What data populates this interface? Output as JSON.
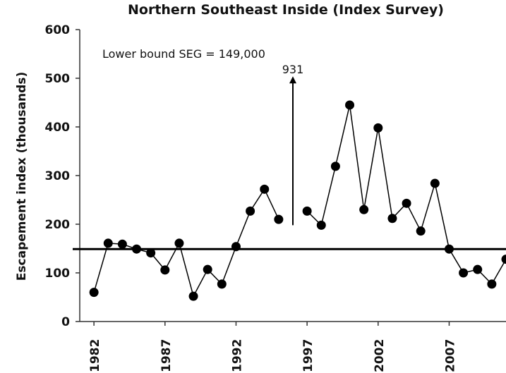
{
  "chart_data": {
    "type": "line",
    "title": "Northern Southeast Inside (Index Survey)",
    "y_label": "Escapement index (thousands)",
    "annotation": "Lower bound SEG = 149,000",
    "reference_line": 149,
    "x": [
      1982,
      1983,
      1984,
      1985,
      1986,
      1987,
      1988,
      1989,
      1990,
      1991,
      1992,
      1993,
      1994,
      1995,
      1996,
      1997,
      1998,
      1999,
      2000,
      2001,
      2002,
      2003,
      2004,
      2005,
      2006,
      2007,
      2008,
      2009,
      2010,
      2011
    ],
    "values": [
      60,
      161,
      159,
      149,
      141,
      106,
      161,
      52,
      107,
      77,
      154,
      227,
      272,
      210,
      931,
      227,
      198,
      319,
      445,
      230,
      398,
      212,
      243,
      186,
      284,
      149,
      100,
      107,
      77,
      128
    ],
    "color": "#000000",
    "xlim": [
      1981,
      2011
    ],
    "xticks": [
      1982,
      1987,
      1992,
      1997,
      2002,
      2007
    ],
    "ylim": [
      0,
      600
    ],
    "yticks": [
      0,
      100,
      200,
      300,
      400,
      500,
      600
    ]
  }
}
